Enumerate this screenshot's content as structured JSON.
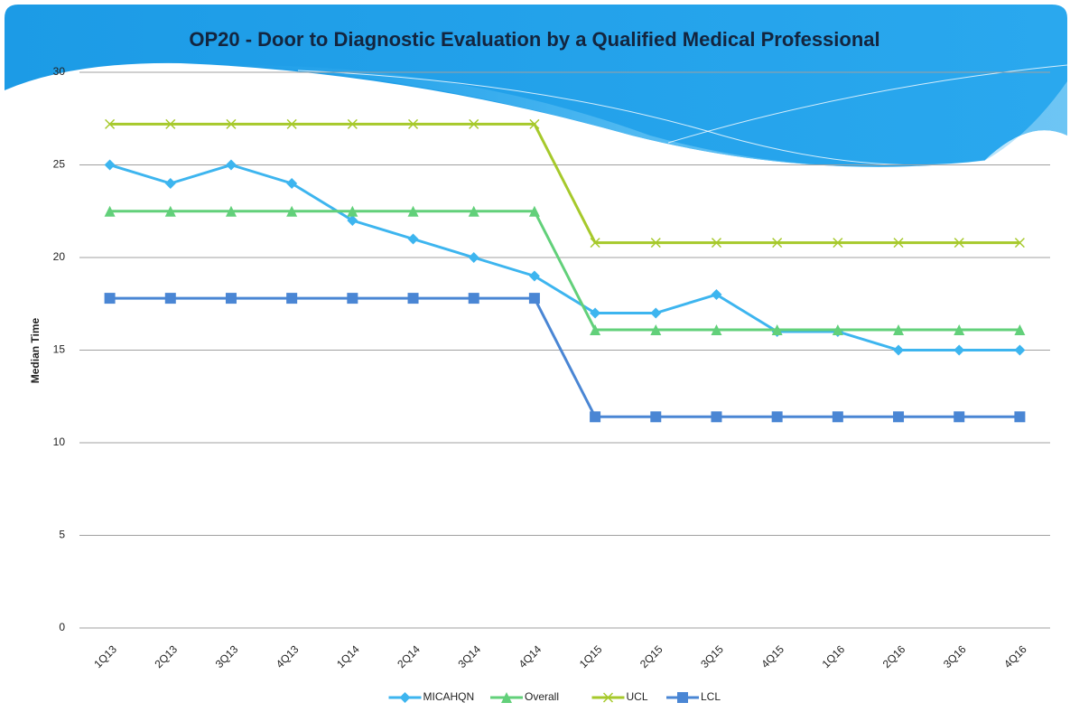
{
  "chart_data": {
    "type": "line",
    "title": "OP20 - Door to Diagnostic Evaluation by a Qualified Medical Professional",
    "y_label": "Median Time",
    "categories": [
      "1Q13",
      "2Q13",
      "3Q13",
      "4Q13",
      "1Q14",
      "2Q14",
      "3Q14",
      "4Q14",
      "1Q15",
      "2Q15",
      "3Q15",
      "4Q15",
      "1Q16",
      "2Q16",
      "3Q16",
      "4Q16"
    ],
    "series": [
      {
        "name": "MICAHQN",
        "color": "#3db5ef",
        "marker": "diamond",
        "values": [
          25,
          24,
          25,
          24,
          22,
          21,
          20,
          19,
          17,
          17,
          18,
          16,
          16,
          15,
          15,
          15
        ]
      },
      {
        "name": "Overall",
        "color": "#62d07a",
        "marker": "triangle",
        "values": [
          22.5,
          22.5,
          22.5,
          22.5,
          22.5,
          22.5,
          22.5,
          22.5,
          16.1,
          16.1,
          16.1,
          16.1,
          16.1,
          16.1,
          16.1,
          16.1
        ]
      },
      {
        "name": "UCL",
        "color": "#a6c92b",
        "marker": "x",
        "values": [
          27.2,
          27.2,
          27.2,
          27.2,
          27.2,
          27.2,
          27.2,
          27.2,
          20.8,
          20.8,
          20.8,
          20.8,
          20.8,
          20.8,
          20.8,
          20.8
        ]
      },
      {
        "name": "LCL",
        "color": "#4a86d4",
        "marker": "square",
        "values": [
          17.8,
          17.8,
          17.8,
          17.8,
          17.8,
          17.8,
          17.8,
          17.8,
          11.4,
          11.4,
          11.4,
          11.4,
          11.4,
          11.4,
          11.4,
          11.4
        ]
      }
    ],
    "ylim": [
      0,
      30
    ],
    "yticks": [
      0,
      5,
      10,
      15,
      20,
      25,
      30
    ],
    "grid": true,
    "legend": "bottom"
  }
}
